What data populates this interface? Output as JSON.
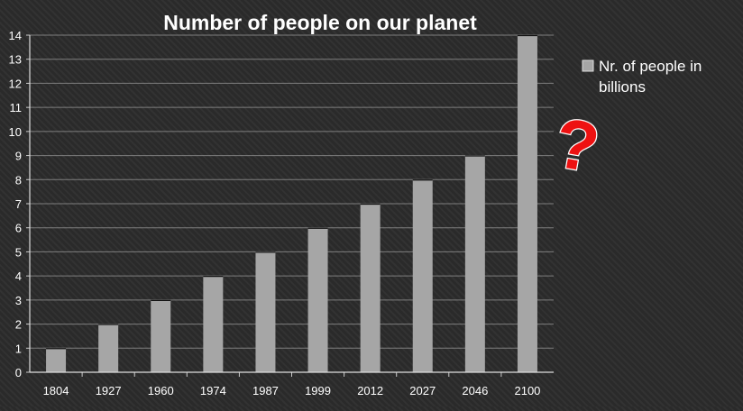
{
  "chart_data": {
    "type": "bar",
    "title": "Number of people on our planet",
    "categories": [
      "1804",
      "1927",
      "1960",
      "1974",
      "1987",
      "1999",
      "2012",
      "2027",
      "2046",
      "2100"
    ],
    "series": [
      {
        "name": "Nr. of people in billions",
        "legend_lines": [
          "Nr. of people in",
          "billions"
        ],
        "values": [
          1,
          2,
          3,
          4,
          5,
          6,
          7,
          8,
          9,
          14
        ],
        "color": "#a6a6a6"
      }
    ],
    "y_ticks": [
      "0",
      "1",
      "2",
      "3",
      "4",
      "5",
      "6",
      "7",
      "8",
      "9",
      "10",
      "11",
      "12",
      "13",
      "14"
    ],
    "ylim": [
      0,
      14
    ],
    "xlabel": "",
    "ylabel": "",
    "grid": true,
    "legend_position": "right",
    "annotation": {
      "text": "?",
      "color": "#ee1111"
    }
  }
}
